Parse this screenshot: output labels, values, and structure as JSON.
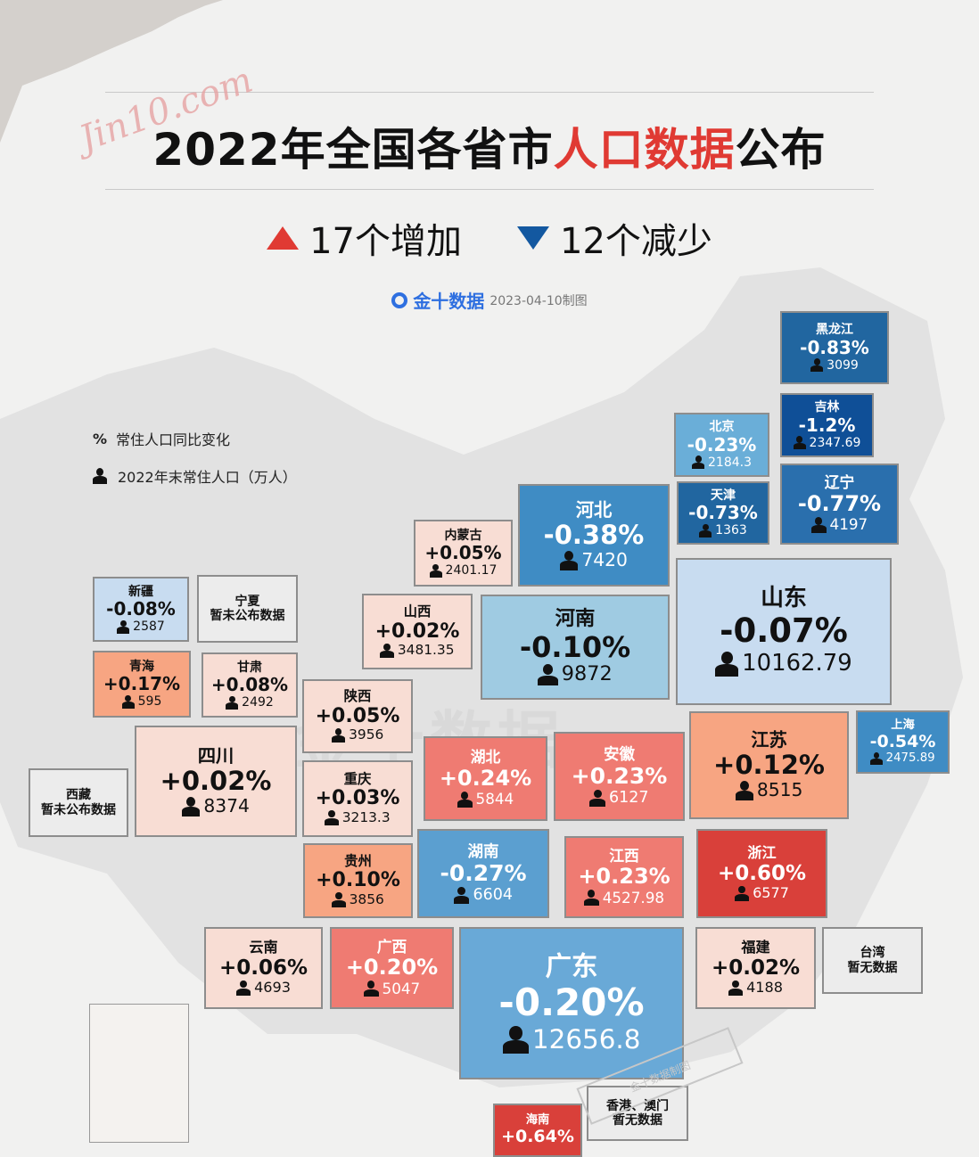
{
  "header": {
    "signature": "Jin10.com",
    "title_part1": "2022年全国各省市",
    "title_highlight": "人口数据",
    "title_part2": "公布",
    "increase_label": "17个增加",
    "decrease_label": "12个减少",
    "brand": "金十数据",
    "date": "2023-04-10制图"
  },
  "legend": {
    "percent_symbol": "%",
    "percent_label": "常住人口同比变化",
    "population_label": "2022年末常住人口（万人）"
  },
  "watermark": "金十数据",
  "stamp": "金十数据制图",
  "colors": {
    "red": "#e03a33",
    "blue": "#1358a0"
  },
  "provinces": [
    {
      "id": "heilongjiang",
      "name": "黑龙江",
      "change": "-0.83%",
      "population": "3099",
      "color": "#2166a0",
      "text": "#ffffff"
    },
    {
      "id": "jilin",
      "name": "吉林",
      "change": "-1.2%",
      "population": "2347.69",
      "color": "#0f4f97",
      "text": "#ffffff"
    },
    {
      "id": "beijing",
      "name": "北京",
      "change": "-0.23%",
      "population": "2184.3",
      "color": "#6aaed8",
      "text": "#ffffff"
    },
    {
      "id": "tianjin",
      "name": "天津",
      "change": "-0.73%",
      "population": "1363",
      "color": "#2166a0",
      "text": "#ffffff"
    },
    {
      "id": "liaoning",
      "name": "辽宁",
      "change": "-0.77%",
      "population": "4197",
      "color": "#2a6fad",
      "text": "#ffffff"
    },
    {
      "id": "hebei",
      "name": "河北",
      "change": "-0.38%",
      "population": "7420",
      "color": "#3f8cc4",
      "text": "#ffffff"
    },
    {
      "id": "neimenggu",
      "name": "内蒙古",
      "change": "+0.05%",
      "population": "2401.17",
      "color": "#f8ddd4",
      "text": "#111111"
    },
    {
      "id": "xinjiang",
      "name": "新疆",
      "change": "-0.08%",
      "population": "2587",
      "color": "#c8dcf0",
      "text": "#111111"
    },
    {
      "id": "ningxia",
      "name": "宁夏",
      "note": "暂未公布数据",
      "color": "#ececec",
      "text": "#111111"
    },
    {
      "id": "shanxi",
      "name": "山西",
      "change": "+0.02%",
      "population": "3481.35",
      "color": "#f8ddd4",
      "text": "#111111"
    },
    {
      "id": "henan",
      "name": "河南",
      "change": "-0.10%",
      "population": "9872",
      "color": "#9fcbe2",
      "text": "#111111"
    },
    {
      "id": "shandong",
      "name": "山东",
      "change": "-0.07%",
      "population": "10162.79",
      "color": "#c8dcf0",
      "text": "#111111"
    },
    {
      "id": "qinghai",
      "name": "青海",
      "change": "+0.17%",
      "population": "595",
      "color": "#f7a582",
      "text": "#111111"
    },
    {
      "id": "gansu",
      "name": "甘肃",
      "change": "+0.08%",
      "population": "2492",
      "color": "#f8ddd4",
      "text": "#111111"
    },
    {
      "id": "shaanxi",
      "name": "陕西",
      "change": "+0.05%",
      "population": "3956",
      "color": "#f8ddd4",
      "text": "#111111"
    },
    {
      "id": "sichuan",
      "name": "四川",
      "change": "+0.02%",
      "population": "8374",
      "color": "#f8ddd4",
      "text": "#111111"
    },
    {
      "id": "xizang",
      "name": "西藏",
      "note": "暂未公布数据",
      "color": "#ececec",
      "text": "#111111"
    },
    {
      "id": "chongqing",
      "name": "重庆",
      "change": "+0.03%",
      "population": "3213.3",
      "color": "#f8ddd4",
      "text": "#111111"
    },
    {
      "id": "hubei",
      "name": "湖北",
      "change": "+0.24%",
      "population": "5844",
      "color": "#ef7b72",
      "text": "#ffffff"
    },
    {
      "id": "anhui",
      "name": "安徽",
      "change": "+0.23%",
      "population": "6127",
      "color": "#ef7b72",
      "text": "#ffffff"
    },
    {
      "id": "jiangsu",
      "name": "江苏",
      "change": "+0.12%",
      "population": "8515",
      "color": "#f7a582",
      "text": "#111111"
    },
    {
      "id": "shanghai",
      "name": "上海",
      "change": "-0.54%",
      "population": "2475.89",
      "color": "#3f8cc4",
      "text": "#ffffff"
    },
    {
      "id": "guizhou",
      "name": "贵州",
      "change": "+0.10%",
      "population": "3856",
      "color": "#f7a582",
      "text": "#111111"
    },
    {
      "id": "hunan",
      "name": "湖南",
      "change": "-0.27%",
      "population": "6604",
      "color": "#5b9fd0",
      "text": "#ffffff"
    },
    {
      "id": "jiangxi",
      "name": "江西",
      "change": "+0.23%",
      "population": "4527.98",
      "color": "#ef7b72",
      "text": "#ffffff"
    },
    {
      "id": "zhejiang",
      "name": "浙江",
      "change": "+0.60%",
      "population": "6577",
      "color": "#d9403a",
      "text": "#ffffff"
    },
    {
      "id": "yunnan",
      "name": "云南",
      "change": "+0.06%",
      "population": "4693",
      "color": "#f8ddd4",
      "text": "#111111"
    },
    {
      "id": "guangxi",
      "name": "广西",
      "change": "+0.20%",
      "population": "5047",
      "color": "#ef7b72",
      "text": "#ffffff"
    },
    {
      "id": "guangdong",
      "name": "广东",
      "change": "-0.20%",
      "population": "12656.8",
      "color": "#69a9d7",
      "text": "#ffffff"
    },
    {
      "id": "fujian",
      "name": "福建",
      "change": "+0.02%",
      "population": "4188",
      "color": "#f8ddd4",
      "text": "#111111"
    },
    {
      "id": "taiwan",
      "name": "台湾",
      "note": "暂无数据",
      "color": "#ececec",
      "text": "#111111"
    },
    {
      "id": "hainan",
      "name": "海南",
      "change": "+0.64%",
      "color": "#d9403a",
      "text": "#ffffff"
    },
    {
      "id": "hkmacao",
      "name": "香港、澳门",
      "note": "暂无数据",
      "color": "#ececec",
      "text": "#111111"
    }
  ]
}
